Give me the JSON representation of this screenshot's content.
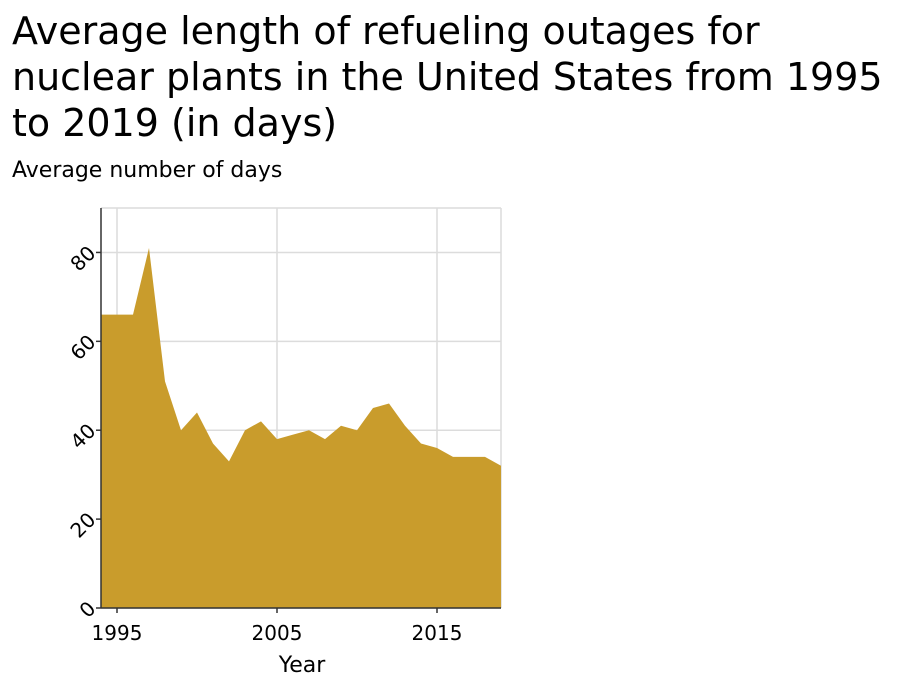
{
  "chart_data": {
    "type": "area",
    "title": "Average length of refueling outages for nuclear plants in the United States from 1995 to 2019 (in days)",
    "ylabel": "Average number of days",
    "xlabel": "Year",
    "x": [
      1995,
      1996,
      1997,
      1998,
      1999,
      2000,
      2001,
      2002,
      2003,
      2004,
      2005,
      2006,
      2007,
      2008,
      2009,
      2010,
      2011,
      2012,
      2013,
      2014,
      2015,
      2016,
      2017,
      2018,
      2019
    ],
    "values": [
      66,
      66,
      81,
      51,
      40,
      44,
      37,
      33,
      40,
      42,
      38,
      39,
      40,
      38,
      41,
      40,
      45,
      46,
      41,
      37,
      36,
      34,
      34,
      34,
      32
    ],
    "xlim": [
      1994,
      2019
    ],
    "ylim": [
      0,
      90
    ],
    "x_ticks": [
      1995,
      2005,
      2015
    ],
    "y_ticks": [
      0,
      20,
      40,
      60,
      80
    ],
    "grid": true,
    "fill_color": "#c99c2c"
  }
}
